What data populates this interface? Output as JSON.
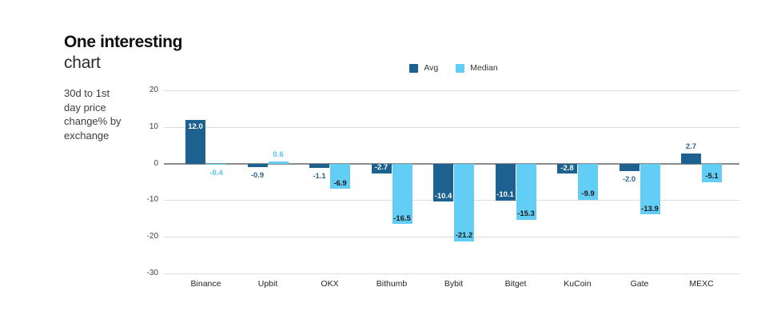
{
  "header": {
    "title_line1": "One interesting",
    "title_line2": "chart",
    "subtitle_lines": [
      "30d to 1st",
      "day price",
      "change% by",
      "exchange"
    ]
  },
  "legend": {
    "items": [
      {
        "label": "Avg",
        "color": "#1d6190"
      },
      {
        "label": "Median",
        "color": "#62cdf5"
      }
    ]
  },
  "colors": {
    "avg_bar": "#1d6190",
    "median_bar": "#62cdf5",
    "avg_label_inside": "#ffffff",
    "avg_label_outside": "#2f6590",
    "median_label_inside": "#1a1a1a",
    "median_label_outside": "#54c3ef",
    "gridline": "#dcdcdc",
    "zero_line": "#8c8c8c"
  },
  "chart_data": {
    "type": "bar",
    "title": "One interesting chart",
    "subtitle": "30d to 1st day price change% by exchange",
    "categories": [
      "Binance",
      "Upbit",
      "OKX",
      "Bithumb",
      "Bybit",
      "Bitget",
      "KuCoin",
      "Gate",
      "MEXC"
    ],
    "series": [
      {
        "name": "Avg",
        "color": "#1d6190",
        "values": [
          12.0,
          -0.9,
          -1.1,
          -2.7,
          -10.4,
          -10.1,
          -2.8,
          -2.0,
          2.7
        ],
        "label_inside": [
          true,
          false,
          false,
          true,
          true,
          true,
          true,
          false,
          false
        ]
      },
      {
        "name": "Median",
        "color": "#62cdf5",
        "values": [
          -0.4,
          0.6,
          -6.9,
          -16.5,
          -21.2,
          -15.3,
          -9.9,
          -13.9,
          -5.1
        ],
        "label_inside": [
          false,
          false,
          true,
          true,
          true,
          true,
          true,
          true,
          true
        ]
      }
    ],
    "xlabel": "",
    "ylabel": "",
    "ylim": [
      -30,
      20
    ],
    "yticks": [
      20,
      10,
      0,
      -10,
      -20,
      -30
    ],
    "grid": true,
    "legend_position": "top-center",
    "value_label_format": "one-decimal"
  }
}
